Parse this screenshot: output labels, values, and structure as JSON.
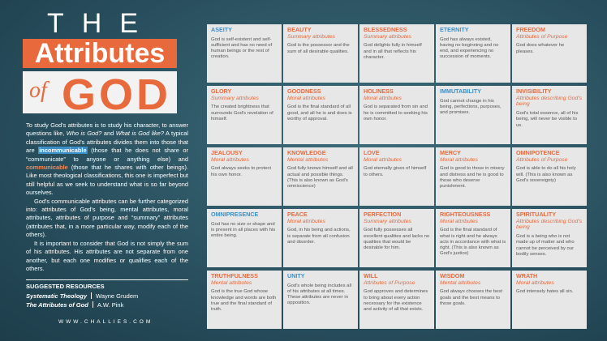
{
  "title": {
    "the": "THE",
    "attributes": "Attributes",
    "of": "of",
    "god": "GOD"
  },
  "intro": [
    [
      {
        "text": "To study God's attributes is to study his character, to answer questions like, "
      },
      {
        "text": "Who is God?",
        "emphasis": "italic"
      },
      {
        "text": " and "
      },
      {
        "text": "What is God like?",
        "emphasis": "italic"
      },
      {
        "text": " A typical classification of God's attributes divides them into those that are "
      },
      {
        "text": "incommunicable",
        "emphasis": "blue"
      },
      {
        "text": " (those that he does not share or “communicate” to anyone or anything else) and "
      },
      {
        "text": "communicable",
        "emphasis": "orange"
      },
      {
        "text": " (those that he shares with other beings). Like most theological classifications, this one is imperfect but still helpful as we seek to understand what is so far beyond ourselves."
      }
    ],
    [
      {
        "text": "God's communicable attributes can be further categorized into: attributes of God's being, mental attributes, moral attributes, attributes of purpose and “summary” attributes (attributes that, in a more particular way, modify each of the others)."
      }
    ],
    [
      {
        "text": "It is important to consider that God is not simply the sum of his attributes. His attributes are not separate from one another, but each one modifies or qualifies each of the others."
      }
    ]
  ],
  "resources": {
    "heading": "SUGGESTED RESOURCES",
    "items": [
      {
        "title": "Systematic Theology",
        "author": "Wayne Grudem"
      },
      {
        "title": "The Attributes of God",
        "author": "A.W. Pink"
      }
    ]
  },
  "website": "WWW.CHALLIES.COM",
  "cards": [
    {
      "name": "ASEITY",
      "color": "#3b8fc9",
      "text": "God is self-existent and self-sufficient and has no need of human beings or the rest of creation."
    },
    {
      "name": "BEAUTY",
      "category": "Summary attributes",
      "color": "#e8693c",
      "text": "God is the possessor and the sum of all desirable qualities."
    },
    {
      "name": "BLESSEDNESS",
      "category": "Summary attributes",
      "color": "#e8693c",
      "text": "God delights fully in himself and in all that reflects his character."
    },
    {
      "name": "ETERNITY",
      "color": "#3b8fc9",
      "text": "God has always existed, having no beginning and no end, and experiencing no succession of moments."
    },
    {
      "name": "FREEDOM",
      "category": "Attributes of Purpose",
      "color": "#e8693c",
      "text": "God does whatever he pleases."
    },
    {
      "name": "GLORY",
      "category": "Summary attributes",
      "color": "#e8693c",
      "text": "The created brightness that surrounds God's revelation of himself."
    },
    {
      "name": "GOODNESS",
      "category": "Moral attributes",
      "color": "#e8693c",
      "text": "God is the final standard of all good, and all he is and does is worthy of approval."
    },
    {
      "name": "HOLINESS",
      "category": "Moral attributes",
      "color": "#e8693c",
      "text": "God is separated from sin and he is committed to seeking his own honor."
    },
    {
      "name": "IMMUTABILITY",
      "color": "#3b8fc9",
      "text": "God cannot change in his being, perfections, purposes, and promises."
    },
    {
      "name": "INVISIBILITY",
      "category": "Attributes describing God's being",
      "color": "#e8693c",
      "text": "God's total essence, all of his being, will never be visible to us."
    },
    {
      "name": "JEALOUSY",
      "category": "Moral attributes",
      "color": "#e8693c",
      "text": "God always seeks to protect his own honor."
    },
    {
      "name": "KNOWLEDGE",
      "category": "Mental attributes",
      "color": "#e8693c",
      "text": "God fully knows himself and all actual and possible things. (This is also known as God's omniscience)"
    },
    {
      "name": "LOVE",
      "category": "Moral attributes",
      "color": "#e8693c",
      "text": "God eternally gives of himself to others."
    },
    {
      "name": "MERCY",
      "category": "Moral attributes",
      "color": "#e8693c",
      "text": "God is good to those in misery and distress and he is good to those who deserve punishment."
    },
    {
      "name": "OMNIPOTENCE",
      "category": "Attributes of Purpose",
      "color": "#e8693c",
      "text": "God is able to do all his holy will. (This is also known as God's sovereignty)"
    },
    {
      "name": "OMNIPRESENCE",
      "color": "#3b8fc9",
      "text": "God has no size or shape and is present in all places with his entire being."
    },
    {
      "name": "PEACE",
      "category": "Moral attributes",
      "color": "#e8693c",
      "text": "God, in his being and actions, is separate from all confusion and disorder."
    },
    {
      "name": "PERFECTION",
      "category": "Summary attributes",
      "color": "#e8693c",
      "text": "God fully possesses all excellent qualities and lacks no qualities that would be desirable for him."
    },
    {
      "name": "RIGHTEOUSNESS",
      "category": "Moral attributes",
      "color": "#e8693c",
      "text": "God is the final standard of what is right and he always acts in accordance with what is right. (This is also known as God's justice)"
    },
    {
      "name": "SPIRITUALITY",
      "category": "Attributes describing God's being",
      "color": "#e8693c",
      "text": "God is a being who is not made up of matter and who cannot be perceived by our bodily senses."
    },
    {
      "name": "TRUTHFULNESS",
      "category": "Mental attributes",
      "color": "#e8693c",
      "text": "God is the true God whose knowledge and words are both true and the final standard of truth."
    },
    {
      "name": "UNITY",
      "color": "#3b8fc9",
      "text": "God's whole being includes all of his attributes at all times. These attributes are never in opposition."
    },
    {
      "name": "WILL",
      "category": "Attributes of Purpose",
      "color": "#e8693c",
      "text": "God approves and determines to bring about every action necessary for the existence and activity of all that exists."
    },
    {
      "name": "WISDOM",
      "category": "Mental attributes",
      "color": "#e8693c",
      "text": "God always chooses the best goals and the best means to those goals."
    },
    {
      "name": "WRATH",
      "category": "Moral attributes",
      "color": "#e8693c",
      "text": "God intensely hates all sin."
    }
  ]
}
